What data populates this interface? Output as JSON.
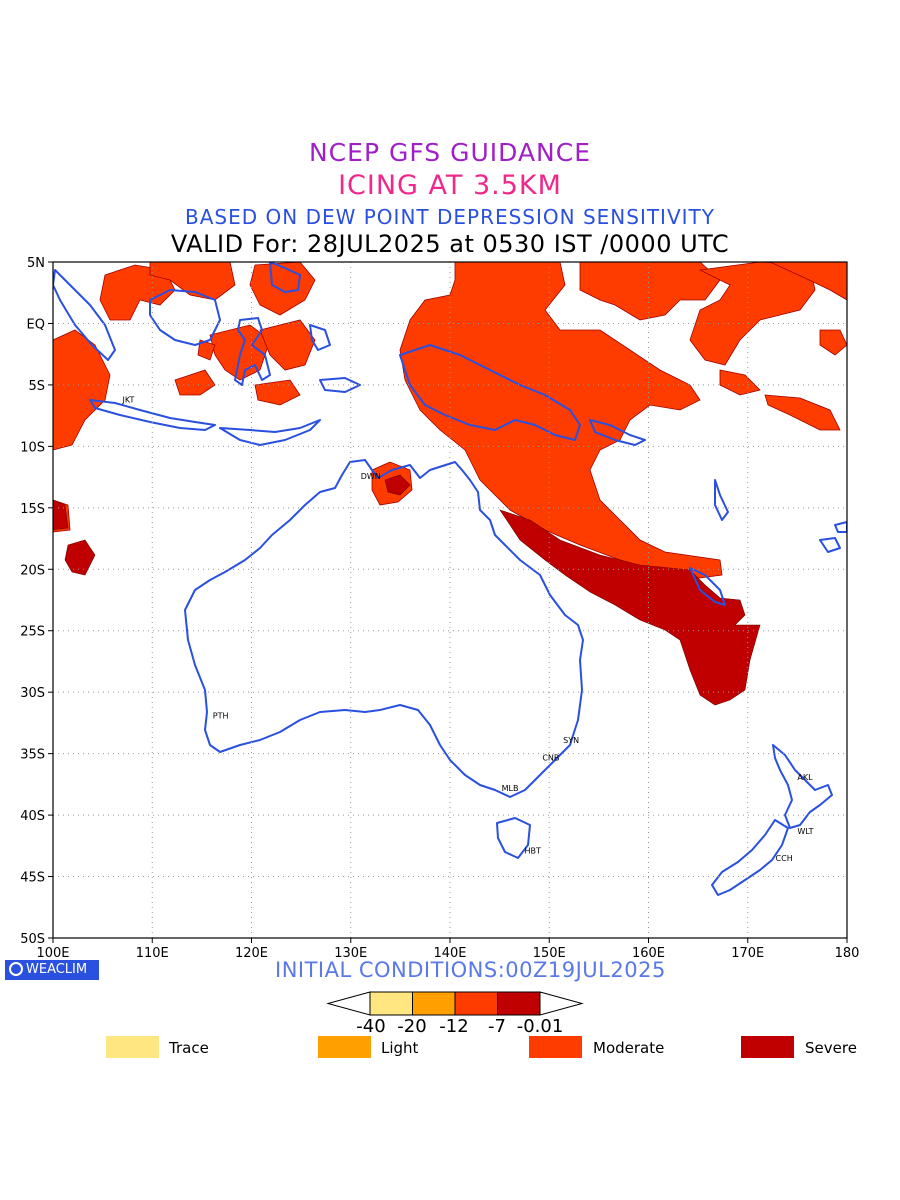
{
  "titles": {
    "line1": "NCEP GFS GUIDANCE",
    "line2": "ICING AT 3.5KM",
    "line3": "BASED ON DEW POINT DEPRESSION SENSITIVITY",
    "line4": "VALID For: 28JUL2025 at 0530 IST /0000 UTC"
  },
  "map": {
    "lon_range": [
      100,
      180
    ],
    "lat_range": [
      -50,
      5
    ],
    "lon_ticks": [
      "100E",
      "110E",
      "120E",
      "130E",
      "140E",
      "150E",
      "160E",
      "170E",
      "180"
    ],
    "lat_ticks": [
      "5N",
      "EQ",
      "5S",
      "10S",
      "15S",
      "20S",
      "25S",
      "30S",
      "35S",
      "40S",
      "45S",
      "50S"
    ],
    "grid": "dotted",
    "cities": [
      {
        "code": "JKT",
        "lon": 106.8,
        "lat": -6.2
      },
      {
        "code": "DWN",
        "lon": 130.8,
        "lat": -12.4
      },
      {
        "code": "PTH",
        "lon": 115.9,
        "lat": -31.9
      },
      {
        "code": "SYN",
        "lon": 151.2,
        "lat": -33.9
      },
      {
        "code": "CNB",
        "lon": 149.1,
        "lat": -35.3
      },
      {
        "code": "MLB",
        "lon": 145.0,
        "lat": -37.8
      },
      {
        "code": "HBT",
        "lon": 147.3,
        "lat": -42.9
      },
      {
        "code": "AKL",
        "lon": 174.8,
        "lat": -36.9
      },
      {
        "code": "WLT",
        "lon": 174.8,
        "lat": -41.3
      },
      {
        "code": "CCH",
        "lon": 172.6,
        "lat": -43.5
      }
    ]
  },
  "brand": {
    "label": "WEACLIM"
  },
  "initial_conditions": "INITIAL CONDITIONS:00Z19JUL2025",
  "colorbar": {
    "labels": [
      "-40",
      "-20",
      "-12",
      "-7",
      "-0.01"
    ],
    "colors": [
      "#ffe680",
      "#ffa000",
      "#ff3c00",
      "#c00000"
    ]
  },
  "legend": [
    {
      "label": "Trace",
      "color": "#ffe680"
    },
    {
      "label": "Light",
      "color": "#ffa000"
    },
    {
      "label": "Moderate",
      "color": "#ff3c00"
    },
    {
      "label": "Severe",
      "color": "#c00000"
    }
  ],
  "colors": {
    "coast": "#2a50e0",
    "moderate": "#ff3c00",
    "severe": "#c00000"
  }
}
